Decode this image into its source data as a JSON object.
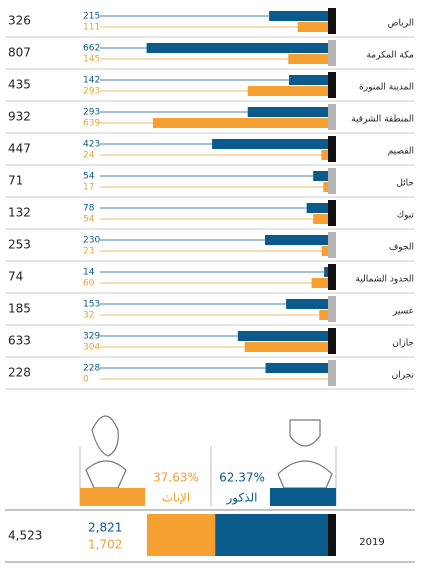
{
  "chart_data": {
    "type": "bar",
    "categories": [
      "الرياض",
      "مكة المكرمة",
      "المدينة المنورة",
      "المنطقة الشرقية",
      "القصيم",
      "حائل",
      "تبوك",
      "الجوف",
      "الحدود الشمالية",
      "عسير",
      "جازان",
      "نجران"
    ],
    "series": [
      {
        "name": "الذكور",
        "color": "#0b5a8c",
        "values": [
          215,
          662,
          142,
          293,
          423,
          54,
          78,
          230,
          14,
          153,
          329,
          228
        ]
      },
      {
        "name": "الإناث",
        "color": "#f5a031",
        "values": [
          111,
          145,
          293,
          639,
          24,
          17,
          54,
          23,
          60,
          32,
          304,
          0
        ]
      }
    ],
    "totals": [
      326,
      807,
      435,
      932,
      447,
      71,
      132,
      253,
      74,
      185,
      633,
      228
    ]
  },
  "summary": {
    "year": 2019,
    "total": {
      "value": 4523,
      "label": "4,523"
    },
    "male": {
      "value": 2821,
      "label": "2,821",
      "percent": 62.37,
      "percent_label": "62.37%"
    },
    "female": {
      "value": 1702,
      "label": "1,702",
      "percent": 37.63,
      "percent_label": "37.63%"
    }
  }
}
